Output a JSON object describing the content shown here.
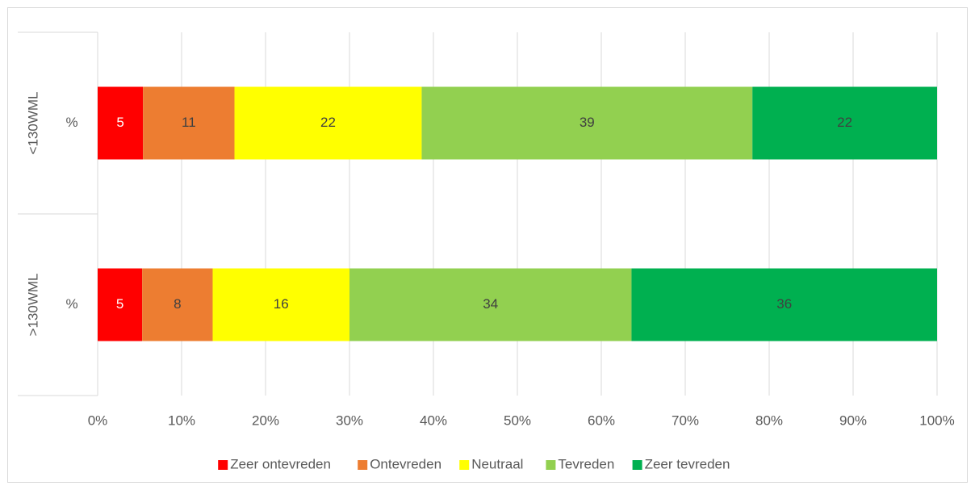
{
  "chart_data": {
    "type": "stacked-bar-horizontal",
    "groups": [
      "<130WML",
      ">130WML"
    ],
    "categories": [
      "%",
      "%"
    ],
    "series": [
      {
        "name": "Zeer ontevreden",
        "color": "#ff0000",
        "values": [
          5.4,
          5.3
        ],
        "value_labels": [
          "5",
          "5"
        ]
      },
      {
        "name": "Ontevreden",
        "color": "#ed7d31",
        "values": [
          10.9,
          8.4
        ],
        "value_labels": [
          "11",
          "8"
        ]
      },
      {
        "name": "Neutraal",
        "color": "#ffff00",
        "values": [
          22.3,
          16.3
        ],
        "value_labels": [
          "22",
          "16"
        ]
      },
      {
        "name": "Tevreden",
        "color": "#92d050",
        "values": [
          39.4,
          33.6
        ],
        "value_labels": [
          "39",
          "34"
        ]
      },
      {
        "name": "Zeer tevreden",
        "color": "#00b050",
        "values": [
          22.0,
          36.4
        ],
        "value_labels": [
          "22",
          "36"
        ]
      }
    ],
    "xlim": [
      0,
      100
    ],
    "xticks": [
      {
        "value": 0,
        "label": "0%"
      },
      {
        "value": 10,
        "label": "10%"
      },
      {
        "value": 20,
        "label": "20%"
      },
      {
        "value": 30,
        "label": "30%"
      },
      {
        "value": 40,
        "label": "40%"
      },
      {
        "value": 50,
        "label": "50%"
      },
      {
        "value": 60,
        "label": "60%"
      },
      {
        "value": 70,
        "label": "70%"
      },
      {
        "value": 80,
        "label": "80%"
      },
      {
        "value": 90,
        "label": "90%"
      },
      {
        "value": 100,
        "label": "100%"
      }
    ],
    "grid": true,
    "legend": "bottom"
  }
}
